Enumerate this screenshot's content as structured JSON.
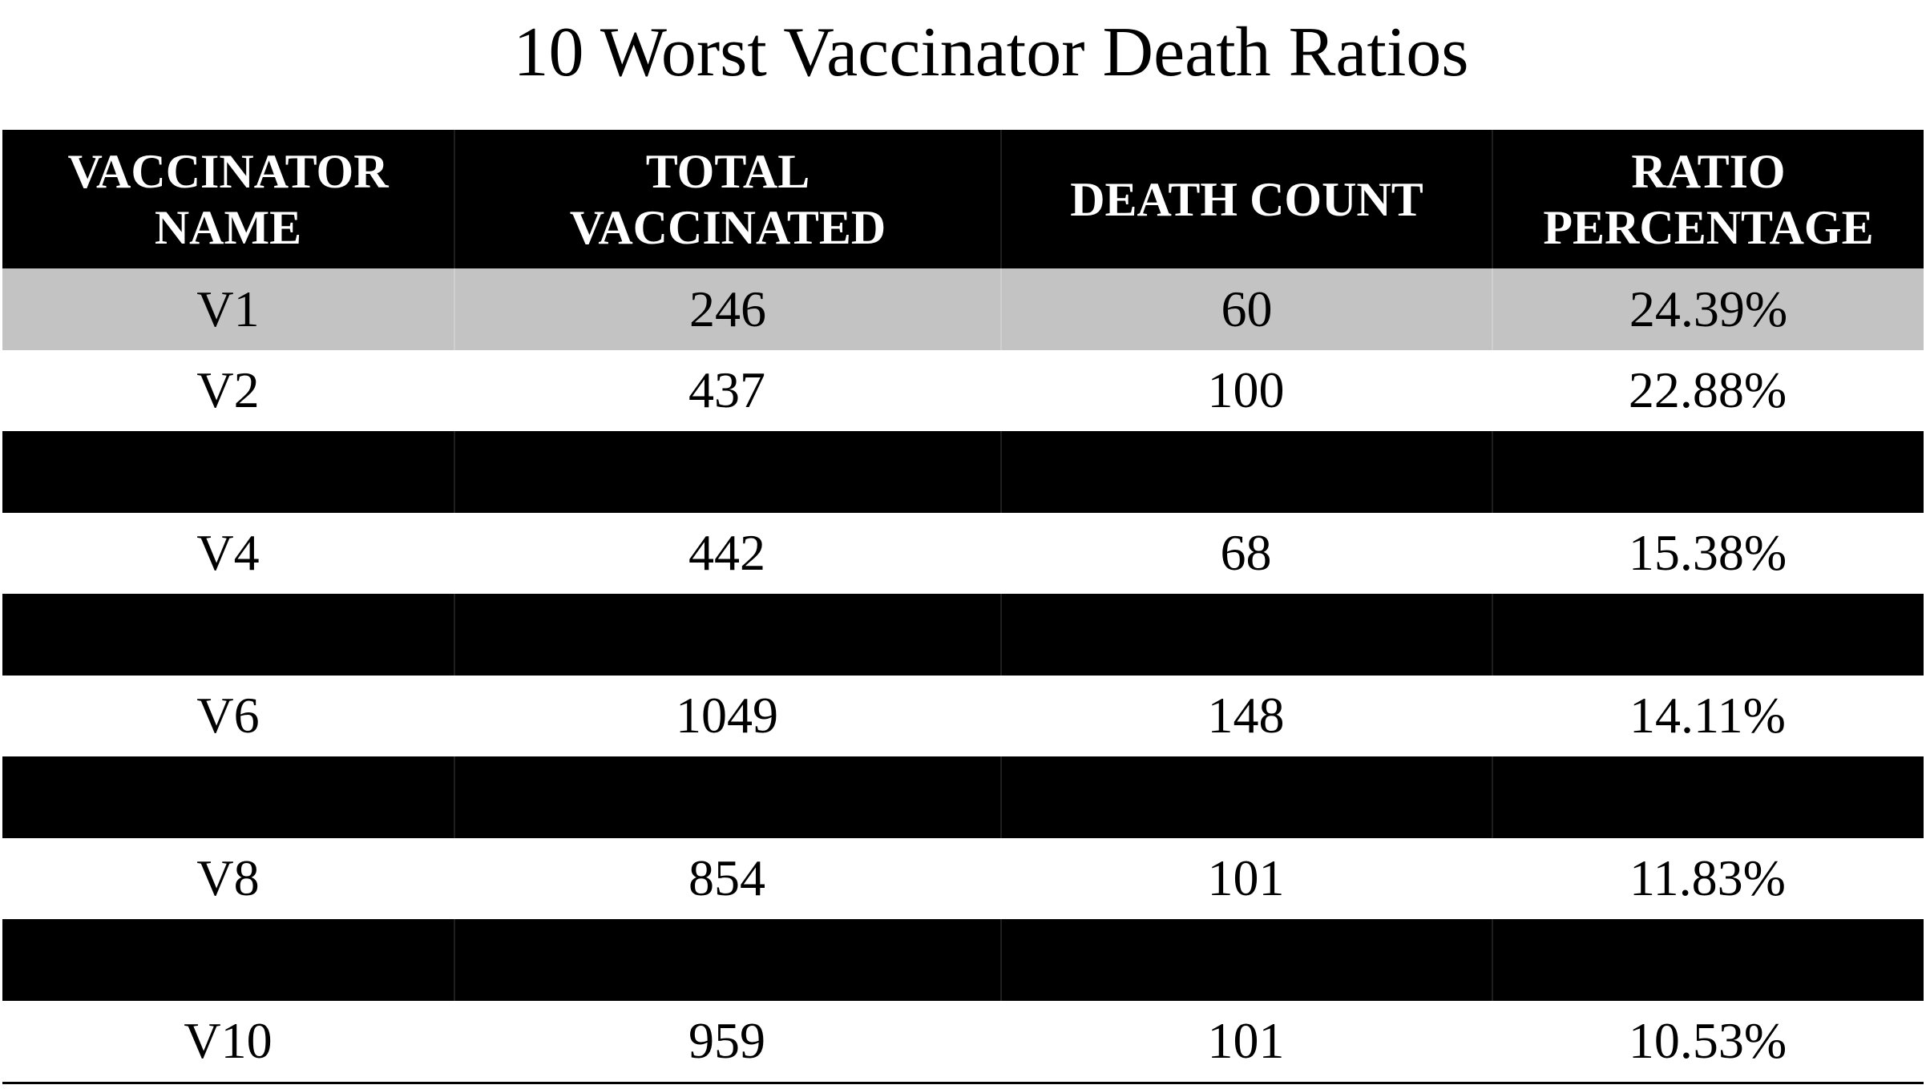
{
  "chart_data": {
    "type": "table",
    "title": "10 Worst Vaccinator Death Ratios",
    "columns": [
      "VACCINATOR NAME",
      "TOTAL VACCINATED",
      "DEATH COUNT",
      "RATIO PERCENTAGE"
    ],
    "header_lines": [
      [
        "VACCINATOR",
        "NAME"
      ],
      [
        "TOTAL",
        "VACCINATED"
      ],
      [
        "DEATH COUNT"
      ],
      [
        "RATIO",
        "PERCENTAGE"
      ]
    ],
    "rows": [
      {
        "cells": [
          "V1",
          "246",
          "60",
          "24.39%"
        ],
        "style": "shade"
      },
      {
        "cells": [
          "V2",
          "437",
          "100",
          "22.88%"
        ],
        "style": "white"
      },
      {
        "cells": [
          "",
          "",
          "",
          ""
        ],
        "style": "black"
      },
      {
        "cells": [
          "V4",
          "442",
          "68",
          "15.38%"
        ],
        "style": "white"
      },
      {
        "cells": [
          "",
          "",
          "",
          ""
        ],
        "style": "black"
      },
      {
        "cells": [
          "V6",
          "1049",
          "148",
          "14.11%"
        ],
        "style": "white"
      },
      {
        "cells": [
          "",
          "",
          "",
          ""
        ],
        "style": "black"
      },
      {
        "cells": [
          "V8",
          "854",
          "101",
          "11.83%"
        ],
        "style": "white"
      },
      {
        "cells": [
          "",
          "",
          "",
          ""
        ],
        "style": "black"
      },
      {
        "cells": [
          "V10",
          "959",
          "101",
          "10.53%"
        ],
        "style": "white"
      }
    ],
    "colors": {
      "header_bg": "#000000",
      "header_text": "#ffffff",
      "highlight_row": "#c3c3c3",
      "redacted_row": "#000000",
      "text": "#000000"
    }
  }
}
